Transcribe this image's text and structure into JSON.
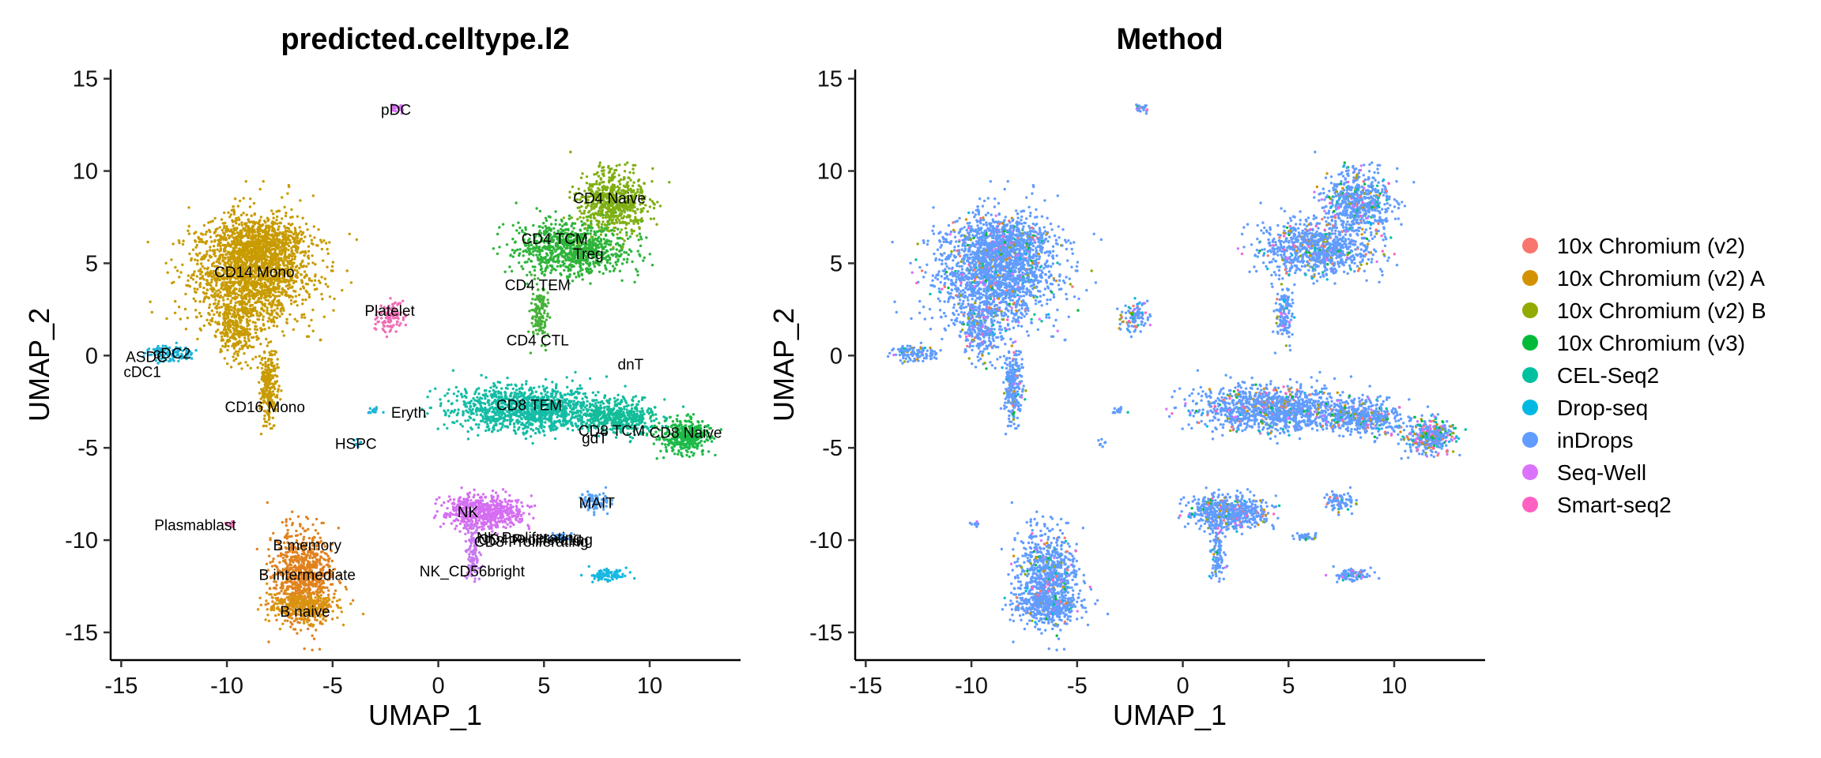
{
  "chart_data": [
    {
      "type": "scatter",
      "title": "predicted.celltype.l2",
      "xlabel": "UMAP_1",
      "ylabel": "UMAP_2",
      "xlim": [
        -15.5,
        14.3
      ],
      "ylim": [
        -16.5,
        15.5
      ],
      "xticks": [
        "-15",
        "-10",
        "-5",
        "0",
        "5",
        "10"
      ],
      "yticks": [
        "-15",
        "-10",
        "-5",
        "0",
        "5",
        "10",
        "15"
      ],
      "grid": false,
      "cluster_labels": [
        {
          "text": "pDC",
          "x": -2.0,
          "y": 13.3
        },
        {
          "text": "CD4 Naive",
          "x": 8.1,
          "y": 8.5
        },
        {
          "text": "CD4 TCM",
          "x": 5.5,
          "y": 6.3
        },
        {
          "text": "Treg",
          "x": 7.1,
          "y": 5.5
        },
        {
          "text": "CD14 Mono",
          "x": -8.7,
          "y": 4.5
        },
        {
          "text": "CD4 TEM",
          "x": 4.7,
          "y": 3.8
        },
        {
          "text": "Platelet",
          "x": -2.3,
          "y": 2.4
        },
        {
          "text": "CD4 CTL",
          "x": 4.7,
          "y": 0.8
        },
        {
          "text": "ASDC",
          "x": -13.8,
          "y": -0.1
        },
        {
          "text": "cDC2",
          "x": -12.6,
          "y": 0.1
        },
        {
          "text": "cDC1",
          "x": -14.0,
          "y": -0.9
        },
        {
          "text": "dnT",
          "x": 9.1,
          "y": -0.5
        },
        {
          "text": "CD16 Mono",
          "x": -8.2,
          "y": -2.8
        },
        {
          "text": "Eryth",
          "x": -1.4,
          "y": -3.1
        },
        {
          "text": "CD8 TEM",
          "x": 4.3,
          "y": -2.7
        },
        {
          "text": "HSPC",
          "x": -3.9,
          "y": -4.8
        },
        {
          "text": "CD8 TCM",
          "x": 8.2,
          "y": -4.1
        },
        {
          "text": "CD8 Naive",
          "x": 11.7,
          "y": -4.2
        },
        {
          "text": "gdT",
          "x": 7.4,
          "y": -4.5
        },
        {
          "text": "MAIT",
          "x": 7.5,
          "y": -8.0
        },
        {
          "text": "NK",
          "x": 1.4,
          "y": -8.5
        },
        {
          "text": "Plasmablast",
          "x": -11.5,
          "y": -9.2
        },
        {
          "text": "NK Proliferating",
          "x": 4.3,
          "y": -9.9
        },
        {
          "text": "CD4 Proliferating",
          "x": 4.6,
          "y": -10.0
        },
        {
          "text": "CD8 Proliferating",
          "x": 4.4,
          "y": -10.1
        },
        {
          "text": "B memory",
          "x": -6.2,
          "y": -10.3
        },
        {
          "text": "NK_CD56bright",
          "x": 1.6,
          "y": -11.7
        },
        {
          "text": "B intermediate",
          "x": -6.2,
          "y": -11.9
        },
        {
          "text": "B naive",
          "x": -6.3,
          "y": -13.9
        }
      ]
    },
    {
      "type": "scatter",
      "title": "Method",
      "xlabel": "UMAP_1",
      "ylabel": "UMAP_2",
      "xlim": [
        -15.5,
        14.3
      ],
      "ylim": [
        -16.5,
        15.5
      ],
      "xticks": [
        "-15",
        "-10",
        "-5",
        "0",
        "5",
        "10"
      ],
      "yticks": [
        "-15",
        "-10",
        "-5",
        "0",
        "5",
        "10",
        "15"
      ],
      "grid": false,
      "legend_position": "right",
      "series": [
        {
          "name": "10x Chromium (v2)",
          "color": "#F8766D"
        },
        {
          "name": "10x Chromium (v2) A",
          "color": "#D39200"
        },
        {
          "name": "10x Chromium (v2) B",
          "color": "#93AA00"
        },
        {
          "name": "10x Chromium (v3)",
          "color": "#00BA38"
        },
        {
          "name": "CEL-Seq2",
          "color": "#00C19F"
        },
        {
          "name": "Drop-seq",
          "color": "#00B9E3"
        },
        {
          "name": "inDrops",
          "color": "#619CFF"
        },
        {
          "name": "Seq-Well",
          "color": "#DB72FB"
        },
        {
          "name": "Smart-seq2",
          "color": "#FF61C3"
        }
      ]
    }
  ],
  "cluster_regions": [
    {
      "cx": -8.8,
      "cy": 4.5,
      "rx": 2.6,
      "ry": 2.6,
      "n": 1800,
      "color": "#C89B00",
      "indrops_share": 0.88
    },
    {
      "cx": -8.5,
      "cy": 6.2,
      "rx": 1.9,
      "ry": 1.2,
      "n": 500,
      "color": "#C89B00",
      "indrops_share": 0.88
    },
    {
      "cx": -9.6,
      "cy": 1.5,
      "rx": 0.9,
      "ry": 1.6,
      "n": 300,
      "color": "#C89B00",
      "indrops_share": 0.88
    },
    {
      "cx": -8.0,
      "cy": -1.7,
      "rx": 0.4,
      "ry": 1.8,
      "n": 250,
      "color": "#C89B00",
      "indrops_share": 0.88
    },
    {
      "cx": -12.6,
      "cy": 0.1,
      "rx": 0.9,
      "ry": 0.4,
      "n": 120,
      "color": "#1FB4D8",
      "indrops_share": 0.85
    },
    {
      "cx": 6.3,
      "cy": 5.8,
      "rx": 2.4,
      "ry": 1.3,
      "n": 900,
      "color": "#2EB43A",
      "indrops_share": 0.85
    },
    {
      "cx": 8.2,
      "cy": 8.4,
      "rx": 1.5,
      "ry": 1.5,
      "n": 650,
      "color": "#7FAF12",
      "indrops_share": 0.85
    },
    {
      "cx": 4.8,
      "cy": 2.2,
      "rx": 0.35,
      "ry": 1.4,
      "n": 140,
      "color": "#45B23A",
      "indrops_share": 0.85
    },
    {
      "cx": -2.3,
      "cy": 2.1,
      "rx": 0.6,
      "ry": 0.7,
      "n": 110,
      "color": "#F06DB4",
      "indrops_share": 0.7
    },
    {
      "cx": -2.0,
      "cy": 13.4,
      "rx": 0.3,
      "ry": 0.2,
      "n": 30,
      "color": "#D971F5",
      "indrops_share": 0.8
    },
    {
      "cx": 4.3,
      "cy": -2.9,
      "rx": 3.3,
      "ry": 1.1,
      "n": 1200,
      "color": "#14BCA5",
      "indrops_share": 0.85
    },
    {
      "cx": 8.5,
      "cy": -3.3,
      "rx": 1.7,
      "ry": 0.8,
      "n": 450,
      "color": "#12BD98",
      "indrops_share": 0.85
    },
    {
      "cx": 11.7,
      "cy": -4.4,
      "rx": 1.1,
      "ry": 0.8,
      "n": 400,
      "color": "#1DBA48",
      "indrops_share": 0.55
    },
    {
      "cx": 2.2,
      "cy": -8.5,
      "rx": 1.6,
      "ry": 0.8,
      "n": 600,
      "color": "#D56EF2",
      "indrops_share": 0.85
    },
    {
      "cx": 1.6,
      "cy": -10.6,
      "rx": 0.35,
      "ry": 1.6,
      "n": 110,
      "color": "#C879F0",
      "indrops_share": 0.85
    },
    {
      "cx": 7.4,
      "cy": -7.9,
      "rx": 0.6,
      "ry": 0.5,
      "n": 90,
      "color": "#5AA4F5",
      "indrops_share": 0.85
    },
    {
      "cx": 8.0,
      "cy": -11.9,
      "rx": 0.8,
      "ry": 0.25,
      "n": 90,
      "color": "#17B8E1",
      "indrops_share": 0.85
    },
    {
      "cx": -6.4,
      "cy": -12.0,
      "rx": 1.3,
      "ry": 2.3,
      "n": 800,
      "color": "#E0821F",
      "indrops_share": 0.9
    },
    {
      "cx": -6.4,
      "cy": -13.6,
      "rx": 1.5,
      "ry": 0.8,
      "n": 300,
      "color": "#D9940E",
      "indrops_share": 0.9
    },
    {
      "cx": -3.0,
      "cy": -3.0,
      "rx": 0.3,
      "ry": 0.2,
      "n": 14,
      "color": "#1FB4D8",
      "indrops_share": 0.85
    },
    {
      "cx": -3.9,
      "cy": -4.7,
      "rx": 0.2,
      "ry": 0.2,
      "n": 8,
      "color": "#1FB4D8",
      "indrops_share": 0.85
    },
    {
      "cx": -9.8,
      "cy": -9.2,
      "rx": 0.3,
      "ry": 0.15,
      "n": 10,
      "color": "#F06DB4",
      "indrops_share": 0.85
    },
    {
      "cx": 5.8,
      "cy": -9.8,
      "rx": 0.5,
      "ry": 0.2,
      "n": 40,
      "color": "#5AA4F5",
      "indrops_share": 0.85
    }
  ]
}
